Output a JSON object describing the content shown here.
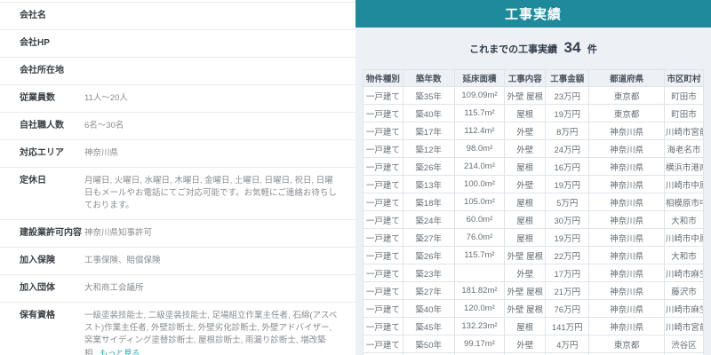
{
  "company_info": {
    "rows": [
      {
        "label": "会社名",
        "value": ""
      },
      {
        "label": "会社HP",
        "value": ""
      },
      {
        "label": "会社所在地",
        "value": ""
      },
      {
        "label": "従業員数",
        "value": "11人〜20人"
      },
      {
        "label": "自社職人数",
        "value": "6名〜30名"
      },
      {
        "label": "対応エリア",
        "value": "神奈川県"
      },
      {
        "label": "定休日",
        "value": "月曜日, 火曜日, 水曜日, 木曜日, 金曜日, 土曜日, 日曜日, 祝日, 日曜日もメールやお電話にてご対応可能です。お気軽にご連絡お待ちしております。"
      },
      {
        "label": "建設業許可内容",
        "value": "神奈川県知事許可"
      },
      {
        "label": "加入保険",
        "value": "工事保険、賠償保険"
      },
      {
        "label": "加入団体",
        "value": "大和商工会議所"
      },
      {
        "label": "保有資格",
        "value": "一級塗装技能士, 二級塗装技能士, 足場組立作業主任者, 石綿(アスベスト)作業主任者, 外壁診断士, 外壁劣化診断士, 外壁アドバイザー, 窯業サイディング塗替診断士, 屋根診断士, 雨漏り診断士, 増改築相...",
        "more_link": "もっと見る"
      }
    ]
  },
  "results": {
    "title": "工事実績",
    "count_prefix": "これまでの工事実績",
    "count": "34",
    "count_suffix": "件",
    "table": {
      "headers": [
        "物件種別",
        "築年数",
        "延床面積",
        "工事内容",
        "工事金額",
        "都道府県",
        "市区町村"
      ],
      "rows": [
        [
          "一戸建て",
          "築35年",
          "109.09m²",
          "外壁 屋根",
          "23万円",
          "東京都",
          "町田市"
        ],
        [
          "一戸建て",
          "築40年",
          "115.7m²",
          "屋根",
          "19万円",
          "東京都",
          "町田市"
        ],
        [
          "一戸建て",
          "築17年",
          "112.4m²",
          "外壁",
          "8万円",
          "神奈川県",
          "川崎市宮前区"
        ],
        [
          "一戸建て",
          "築12年",
          "98.0m²",
          "外壁",
          "24万円",
          "神奈川県",
          "海老名市"
        ],
        [
          "一戸建て",
          "築26年",
          "214.0m²",
          "屋根",
          "16万円",
          "神奈川県",
          "横浜市港南区"
        ],
        [
          "一戸建て",
          "築13年",
          "100.0m²",
          "外壁",
          "19万円",
          "神奈川県",
          "川崎市中原区"
        ],
        [
          "一戸建て",
          "築18年",
          "105.0m²",
          "屋根",
          "5万円",
          "神奈川県",
          "相模原市中央区"
        ],
        [
          "一戸建て",
          "築24年",
          "60.0m²",
          "屋根",
          "30万円",
          "神奈川県",
          "大和市"
        ],
        [
          "一戸建て",
          "築27年",
          "76.0m²",
          "屋根",
          "19万円",
          "神奈川県",
          "川崎市中原区"
        ],
        [
          "一戸建て",
          "築26年",
          "115.7m²",
          "外壁 屋根",
          "22万円",
          "神奈川県",
          "大和市"
        ],
        [
          "一戸建て",
          "築23年",
          "",
          "外壁",
          "17万円",
          "神奈川県",
          "川崎市麻生区"
        ],
        [
          "一戸建て",
          "築27年",
          "181.82m²",
          "外壁 屋根",
          "21万円",
          "神奈川県",
          "藤沢市"
        ],
        [
          "一戸建て",
          "築40年",
          "120.0m²",
          "外壁 屋根",
          "76万円",
          "神奈川県",
          "川崎市麻生区"
        ],
        [
          "一戸建て",
          "築45年",
          "132.23m²",
          "屋根",
          "141万円",
          "神奈川県",
          "川崎市宮前区"
        ],
        [
          "一戸建て",
          "築50年",
          "99.17m²",
          "外壁",
          "4万円",
          "東京都",
          "渋谷区"
        ]
      ]
    }
  },
  "colors": {
    "header_teal": "#1e8a9b",
    "panel_bg": "#edf1f6",
    "link_teal": "#2d9fb0"
  }
}
